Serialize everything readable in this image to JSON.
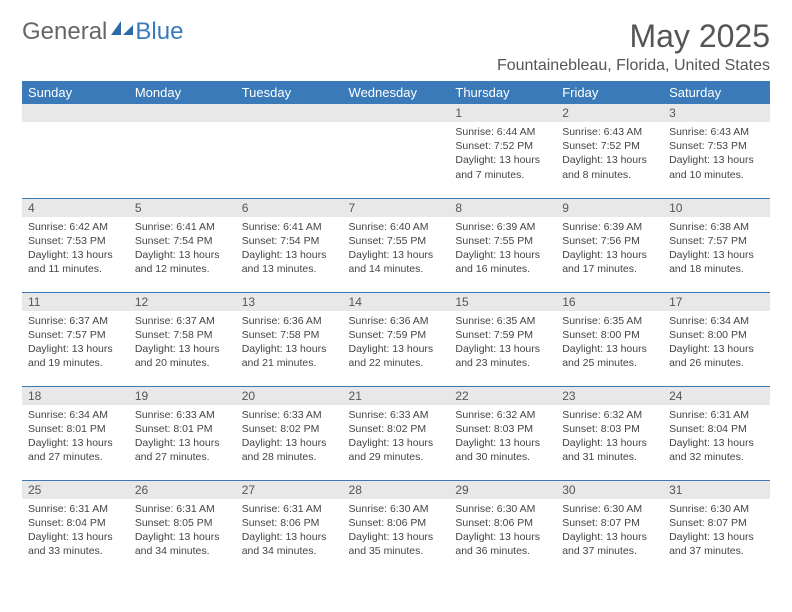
{
  "brand": {
    "part1": "General",
    "part2": "Blue"
  },
  "title": "May 2025",
  "location": "Fountainebleau, Florida, United States",
  "header_bg": "#3a7ab8",
  "header_fg": "#ffffff",
  "daynum_bg": "#e8e8e8",
  "divider_color": "#3a7ab8",
  "day_names": [
    "Sunday",
    "Monday",
    "Tuesday",
    "Wednesday",
    "Thursday",
    "Friday",
    "Saturday"
  ],
  "weeks": [
    [
      {
        "n": "",
        "sr": "",
        "ss": "",
        "dl": ""
      },
      {
        "n": "",
        "sr": "",
        "ss": "",
        "dl": ""
      },
      {
        "n": "",
        "sr": "",
        "ss": "",
        "dl": ""
      },
      {
        "n": "",
        "sr": "",
        "ss": "",
        "dl": ""
      },
      {
        "n": "1",
        "sr": "Sunrise: 6:44 AM",
        "ss": "Sunset: 7:52 PM",
        "dl": "Daylight: 13 hours and 7 minutes."
      },
      {
        "n": "2",
        "sr": "Sunrise: 6:43 AM",
        "ss": "Sunset: 7:52 PM",
        "dl": "Daylight: 13 hours and 8 minutes."
      },
      {
        "n": "3",
        "sr": "Sunrise: 6:43 AM",
        "ss": "Sunset: 7:53 PM",
        "dl": "Daylight: 13 hours and 10 minutes."
      }
    ],
    [
      {
        "n": "4",
        "sr": "Sunrise: 6:42 AM",
        "ss": "Sunset: 7:53 PM",
        "dl": "Daylight: 13 hours and 11 minutes."
      },
      {
        "n": "5",
        "sr": "Sunrise: 6:41 AM",
        "ss": "Sunset: 7:54 PM",
        "dl": "Daylight: 13 hours and 12 minutes."
      },
      {
        "n": "6",
        "sr": "Sunrise: 6:41 AM",
        "ss": "Sunset: 7:54 PM",
        "dl": "Daylight: 13 hours and 13 minutes."
      },
      {
        "n": "7",
        "sr": "Sunrise: 6:40 AM",
        "ss": "Sunset: 7:55 PM",
        "dl": "Daylight: 13 hours and 14 minutes."
      },
      {
        "n": "8",
        "sr": "Sunrise: 6:39 AM",
        "ss": "Sunset: 7:55 PM",
        "dl": "Daylight: 13 hours and 16 minutes."
      },
      {
        "n": "9",
        "sr": "Sunrise: 6:39 AM",
        "ss": "Sunset: 7:56 PM",
        "dl": "Daylight: 13 hours and 17 minutes."
      },
      {
        "n": "10",
        "sr": "Sunrise: 6:38 AM",
        "ss": "Sunset: 7:57 PM",
        "dl": "Daylight: 13 hours and 18 minutes."
      }
    ],
    [
      {
        "n": "11",
        "sr": "Sunrise: 6:37 AM",
        "ss": "Sunset: 7:57 PM",
        "dl": "Daylight: 13 hours and 19 minutes."
      },
      {
        "n": "12",
        "sr": "Sunrise: 6:37 AM",
        "ss": "Sunset: 7:58 PM",
        "dl": "Daylight: 13 hours and 20 minutes."
      },
      {
        "n": "13",
        "sr": "Sunrise: 6:36 AM",
        "ss": "Sunset: 7:58 PM",
        "dl": "Daylight: 13 hours and 21 minutes."
      },
      {
        "n": "14",
        "sr": "Sunrise: 6:36 AM",
        "ss": "Sunset: 7:59 PM",
        "dl": "Daylight: 13 hours and 22 minutes."
      },
      {
        "n": "15",
        "sr": "Sunrise: 6:35 AM",
        "ss": "Sunset: 7:59 PM",
        "dl": "Daylight: 13 hours and 23 minutes."
      },
      {
        "n": "16",
        "sr": "Sunrise: 6:35 AM",
        "ss": "Sunset: 8:00 PM",
        "dl": "Daylight: 13 hours and 25 minutes."
      },
      {
        "n": "17",
        "sr": "Sunrise: 6:34 AM",
        "ss": "Sunset: 8:00 PM",
        "dl": "Daylight: 13 hours and 26 minutes."
      }
    ],
    [
      {
        "n": "18",
        "sr": "Sunrise: 6:34 AM",
        "ss": "Sunset: 8:01 PM",
        "dl": "Daylight: 13 hours and 27 minutes."
      },
      {
        "n": "19",
        "sr": "Sunrise: 6:33 AM",
        "ss": "Sunset: 8:01 PM",
        "dl": "Daylight: 13 hours and 27 minutes."
      },
      {
        "n": "20",
        "sr": "Sunrise: 6:33 AM",
        "ss": "Sunset: 8:02 PM",
        "dl": "Daylight: 13 hours and 28 minutes."
      },
      {
        "n": "21",
        "sr": "Sunrise: 6:33 AM",
        "ss": "Sunset: 8:02 PM",
        "dl": "Daylight: 13 hours and 29 minutes."
      },
      {
        "n": "22",
        "sr": "Sunrise: 6:32 AM",
        "ss": "Sunset: 8:03 PM",
        "dl": "Daylight: 13 hours and 30 minutes."
      },
      {
        "n": "23",
        "sr": "Sunrise: 6:32 AM",
        "ss": "Sunset: 8:03 PM",
        "dl": "Daylight: 13 hours and 31 minutes."
      },
      {
        "n": "24",
        "sr": "Sunrise: 6:31 AM",
        "ss": "Sunset: 8:04 PM",
        "dl": "Daylight: 13 hours and 32 minutes."
      }
    ],
    [
      {
        "n": "25",
        "sr": "Sunrise: 6:31 AM",
        "ss": "Sunset: 8:04 PM",
        "dl": "Daylight: 13 hours and 33 minutes."
      },
      {
        "n": "26",
        "sr": "Sunrise: 6:31 AM",
        "ss": "Sunset: 8:05 PM",
        "dl": "Daylight: 13 hours and 34 minutes."
      },
      {
        "n": "27",
        "sr": "Sunrise: 6:31 AM",
        "ss": "Sunset: 8:06 PM",
        "dl": "Daylight: 13 hours and 34 minutes."
      },
      {
        "n": "28",
        "sr": "Sunrise: 6:30 AM",
        "ss": "Sunset: 8:06 PM",
        "dl": "Daylight: 13 hours and 35 minutes."
      },
      {
        "n": "29",
        "sr": "Sunrise: 6:30 AM",
        "ss": "Sunset: 8:06 PM",
        "dl": "Daylight: 13 hours and 36 minutes."
      },
      {
        "n": "30",
        "sr": "Sunrise: 6:30 AM",
        "ss": "Sunset: 8:07 PM",
        "dl": "Daylight: 13 hours and 37 minutes."
      },
      {
        "n": "31",
        "sr": "Sunrise: 6:30 AM",
        "ss": "Sunset: 8:07 PM",
        "dl": "Daylight: 13 hours and 37 minutes."
      }
    ]
  ]
}
